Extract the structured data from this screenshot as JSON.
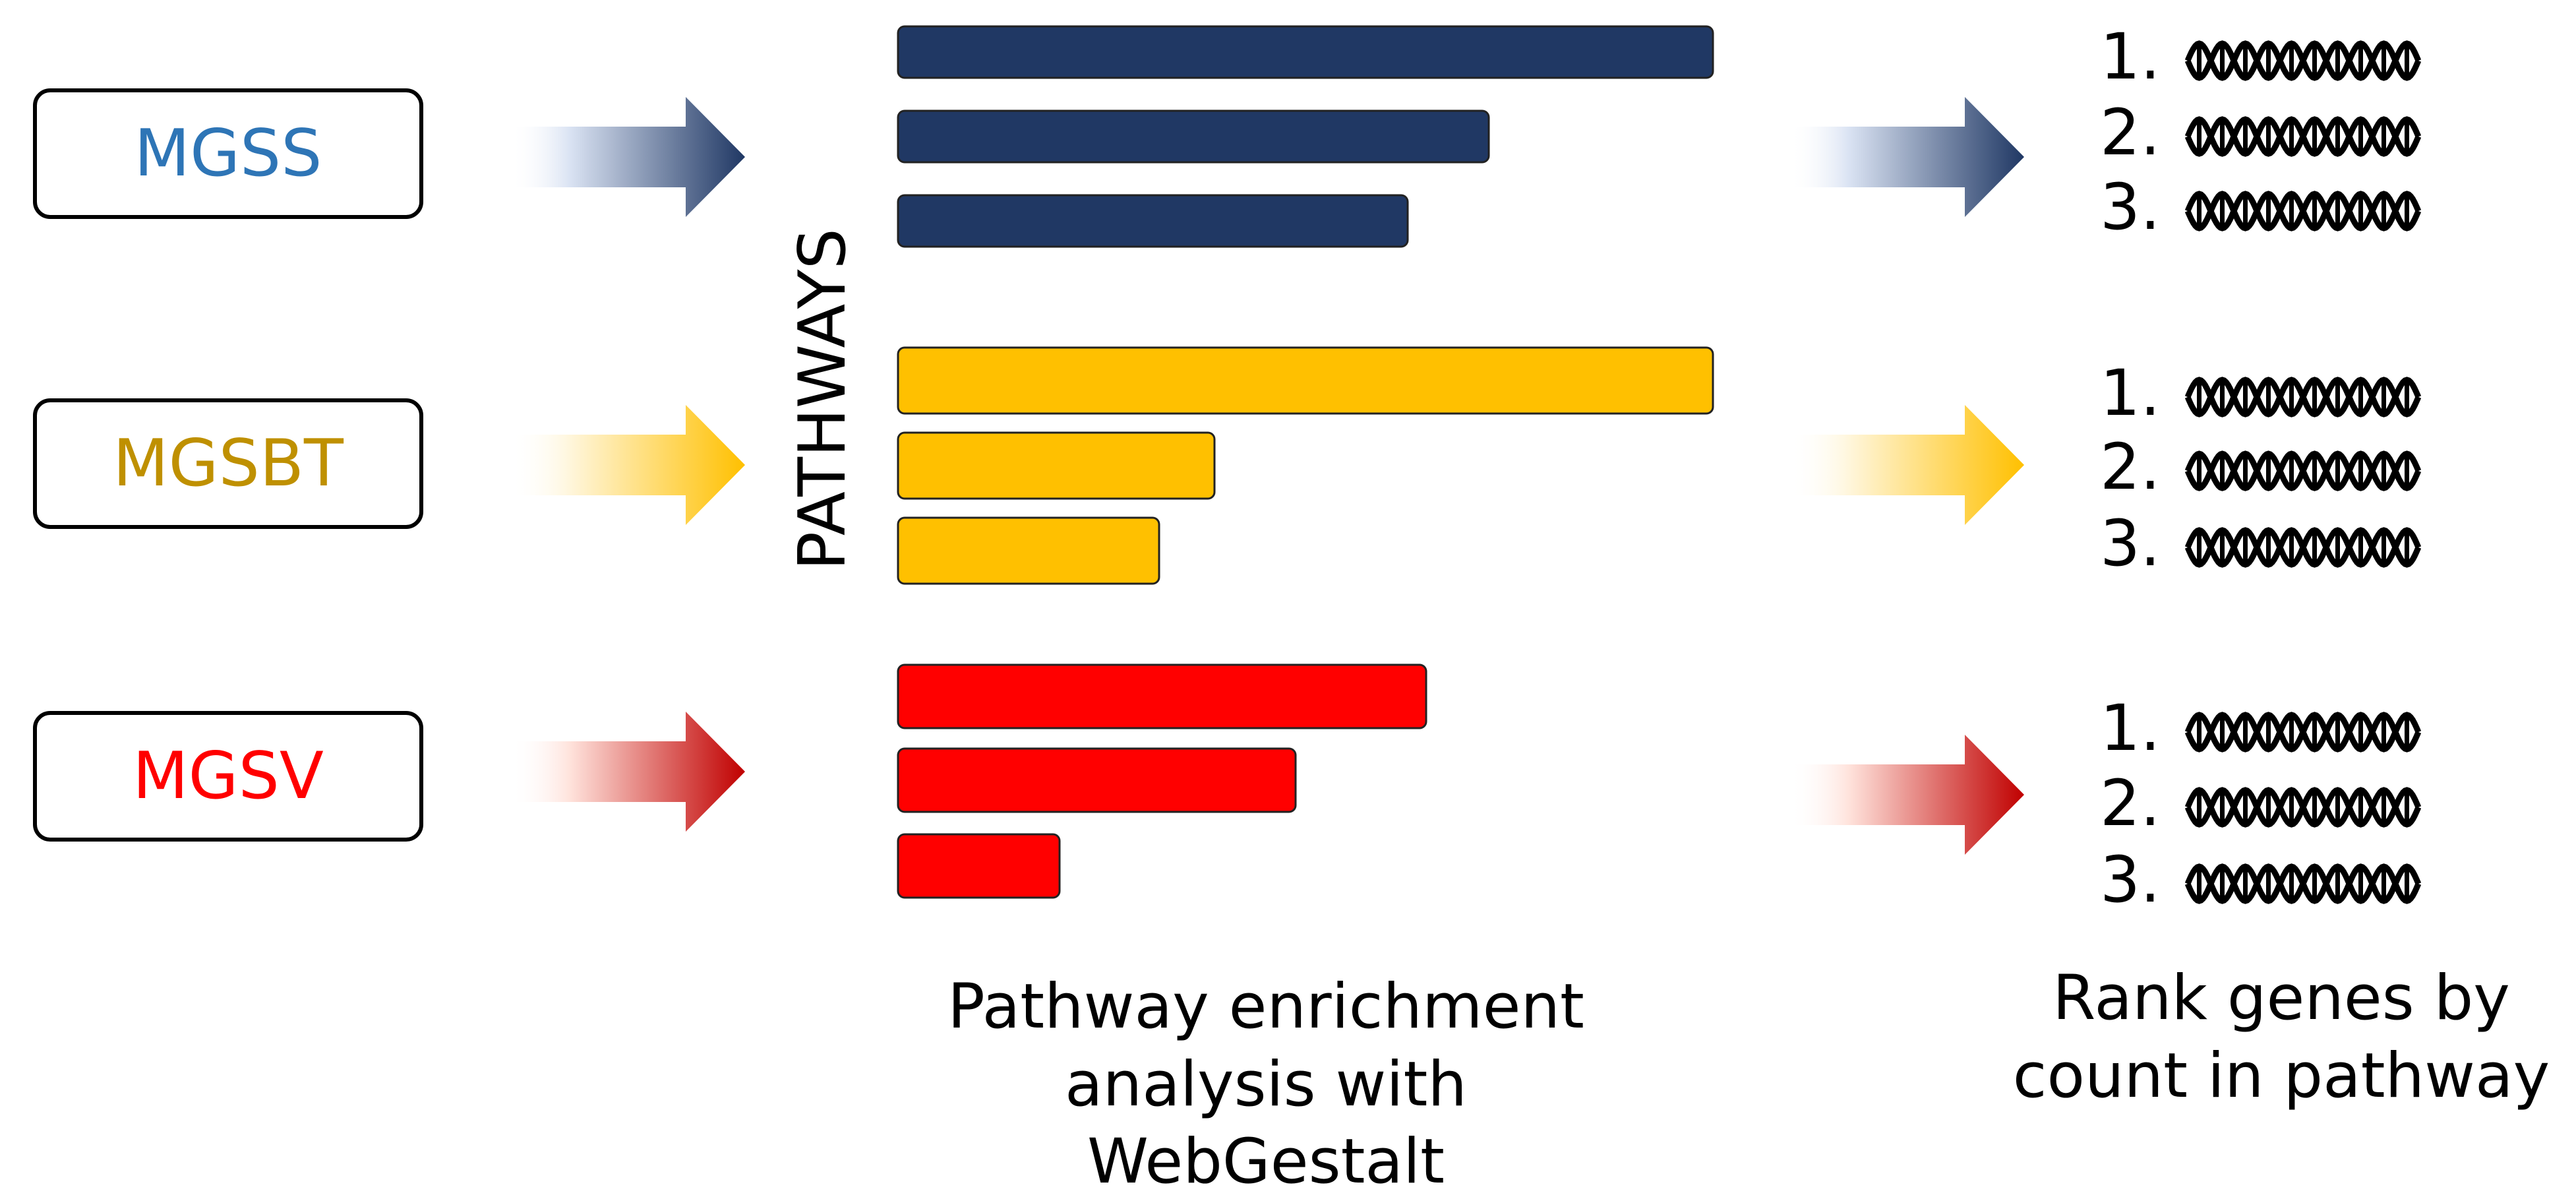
{
  "datasets": [
    {
      "label": "MGSS",
      "color": "#2e75b6",
      "bar_color": "#203864",
      "arrow_color": "#203864",
      "arrow_fade": "#dae3f3",
      "pathway_values": [
        1.0,
        0.725,
        0.625
      ]
    },
    {
      "label": "MGSBT",
      "color": "#bf9000",
      "bar_color": "#ffc000",
      "arrow_color": "#ffc000",
      "arrow_fade": "#fff6dc",
      "pathway_values": [
        1.0,
        0.388,
        0.32
      ]
    },
    {
      "label": "MGSV",
      "color": "#ff0000",
      "bar_color": "#ff0000",
      "arrow_color": "#c00000",
      "arrow_fade": "#ffe3dc",
      "pathway_values": [
        0.648,
        0.488,
        0.198
      ]
    }
  ],
  "axis_label": "PATHWAYS",
  "caption_middle": "Pathway enrichment analysis with WebGestalt",
  "caption_right": "Rank genes by count in pathway",
  "rank_numbers": [
    "1.",
    "2.",
    "3."
  ],
  "gene_icon": "dna-icon"
}
